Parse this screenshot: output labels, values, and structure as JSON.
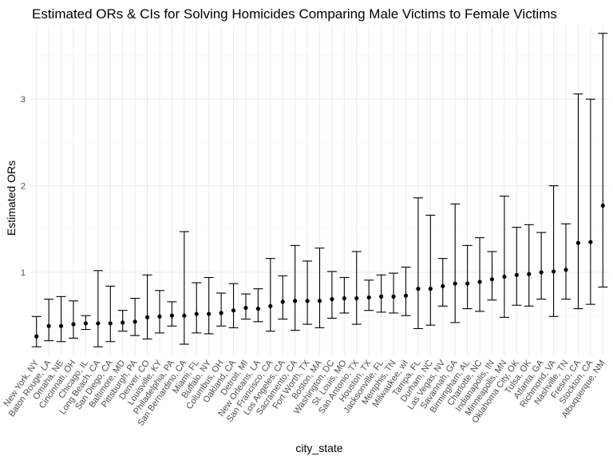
{
  "chart_data": {
    "type": "scatter",
    "title": "Estimated ORs & CIs for Solving Homicides Comparing Male Victims to Female Victims",
    "xlabel": "city_state",
    "ylabel": "Estimated ORs",
    "ylim": [
      0.05,
      3.85
    ],
    "yticks": [
      1,
      2,
      3
    ],
    "grid": true,
    "categories": [
      "New York, NY",
      "Baton Rouge, LA",
      "Omaha, NE",
      "Cincinnati, OH",
      "Chicago, IL",
      "Long Beach, CA",
      "San Diego, CA",
      "Baltimore, MD",
      "Pittsburgh, PA",
      "Denver, CO",
      "Louisville, KY",
      "Philadelphia, PA",
      "San Bernardino, CA",
      "Miami, FL",
      "Buffalo, NY",
      "Columbus, OH",
      "Oakland, CA",
      "Detroit, MI",
      "New Orleans, LA",
      "San Francisco, CA",
      "Los Angeles, CA",
      "Sacramento, CA",
      "Fort Worth, TX",
      "Boston, MA",
      "Washington, DC",
      "St. Louis, MO",
      "San Antonio, TX",
      "Houston, TX",
      "Jacksonville, FL",
      "Memphis, TN",
      "Milwaukee, wI",
      "Tampa, FL",
      "Durham, NC",
      "Las Vegas, NV",
      "Savannah, GA",
      "Birmingham, AL",
      "Charlotte, NC",
      "Indianapolis, IN",
      "Minneapolis, MN",
      "Oklahoma City, OK",
      "Tulsa, OK",
      "Atlanta, GA",
      "Richmond, VA",
      "Nashville, TN",
      "Fresno, CA",
      "Stockton, CA",
      "Albuquerque, NM"
    ],
    "or": [
      0.26,
      0.38,
      0.38,
      0.4,
      0.41,
      0.41,
      0.41,
      0.42,
      0.43,
      0.48,
      0.49,
      0.5,
      0.5,
      0.52,
      0.52,
      0.53,
      0.56,
      0.59,
      0.58,
      0.61,
      0.66,
      0.67,
      0.67,
      0.67,
      0.69,
      0.7,
      0.7,
      0.71,
      0.72,
      0.72,
      0.73,
      0.81,
      0.81,
      0.84,
      0.87,
      0.87,
      0.89,
      0.92,
      0.95,
      0.97,
      0.98,
      1.0,
      1.01,
      1.03,
      1.34,
      1.35,
      1.77
    ],
    "lower": [
      0.14,
      0.21,
      0.2,
      0.24,
      0.34,
      0.14,
      0.2,
      0.32,
      0.27,
      0.23,
      0.3,
      0.38,
      0.17,
      0.3,
      0.29,
      0.38,
      0.36,
      0.46,
      0.43,
      0.32,
      0.46,
      0.33,
      0.4,
      0.36,
      0.47,
      0.53,
      0.4,
      0.56,
      0.54,
      0.53,
      0.5,
      0.35,
      0.39,
      0.61,
      0.42,
      0.58,
      0.55,
      0.68,
      0.48,
      0.62,
      0.61,
      0.69,
      0.49,
      0.69,
      0.58,
      0.63,
      0.83
    ],
    "upper": [
      0.49,
      0.69,
      0.72,
      0.67,
      0.5,
      1.02,
      0.84,
      0.56,
      0.7,
      0.97,
      0.79,
      0.66,
      1.47,
      0.88,
      0.94,
      0.76,
      0.87,
      0.75,
      0.81,
      1.16,
      0.96,
      1.31,
      1.13,
      1.28,
      1.01,
      0.94,
      1.24,
      0.91,
      0.97,
      0.99,
      1.06,
      1.86,
      1.66,
      1.16,
      1.79,
      1.31,
      1.4,
      1.24,
      1.88,
      1.52,
      1.55,
      1.46,
      2.0,
      1.56,
      3.06,
      3.0,
      3.76
    ]
  }
}
